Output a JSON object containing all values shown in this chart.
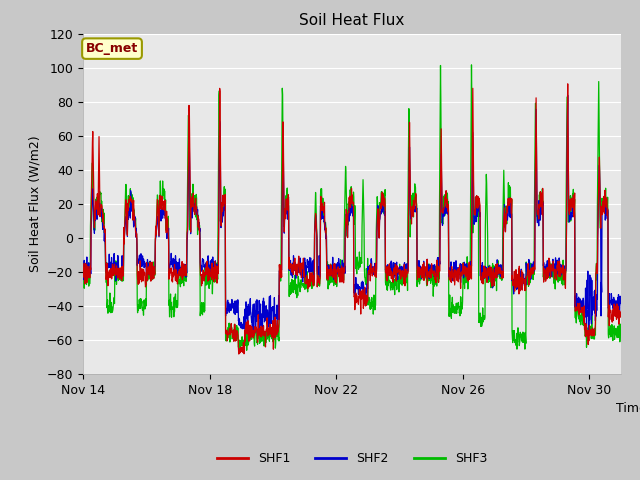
{
  "title": "Soil Heat Flux",
  "ylabel": "Soil Heat Flux (W/m2)",
  "xlabel": "Time",
  "ylim": [
    -80,
    120
  ],
  "yticks": [
    -80,
    -60,
    -40,
    -20,
    0,
    20,
    40,
    60,
    80,
    100,
    120
  ],
  "xtick_labels": [
    "Nov 14",
    "Nov 18",
    "Nov 22",
    "Nov 26",
    "Nov 30"
  ],
  "xtick_positions": [
    0,
    4,
    8,
    12,
    16
  ],
  "total_days": 17,
  "fig_bg_color": "#c8c8c8",
  "plot_bg_color": "#e8e8e8",
  "shf1_color": "#cc0000",
  "shf2_color": "#0000cc",
  "shf3_color": "#00bb00",
  "legend_items": [
    "SHF1",
    "SHF2",
    "SHF3"
  ],
  "annotation_text": "BC_met",
  "annotation_bg": "#ffffcc",
  "annotation_border": "#999900",
  "annotation_text_color": "#880000",
  "grid_color": "#ffffff",
  "linewidth": 0.9
}
